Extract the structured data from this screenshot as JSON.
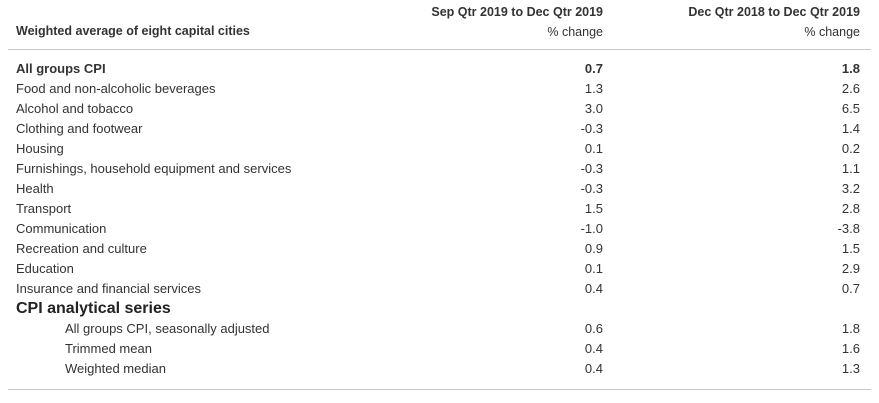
{
  "header": {
    "label": "Weighted average of eight capital cities",
    "col1_title": "Sep Qtr 2019 to Dec Qtr 2019",
    "col1_unit": "% change",
    "col2_title": "Dec Qtr 2018 to Dec Qtr 2019",
    "col2_unit": "% change"
  },
  "rows": [
    {
      "label": "All groups CPI",
      "v1": "0.7",
      "v2": "1.8"
    },
    {
      "label": "Food and non-alcoholic beverages",
      "v1": "1.3",
      "v2": "2.6"
    },
    {
      "label": "Alcohol and tobacco",
      "v1": "3.0",
      "v2": "6.5"
    },
    {
      "label": "Clothing and footwear",
      "v1": "-0.3",
      "v2": "1.4"
    },
    {
      "label": "Housing",
      "v1": "0.1",
      "v2": "0.2"
    },
    {
      "label": "Furnishings, household equipment and services",
      "v1": "-0.3",
      "v2": "1.1"
    },
    {
      "label": "Health",
      "v1": "-0.3",
      "v2": "3.2"
    },
    {
      "label": "Transport",
      "v1": "1.5",
      "v2": "2.8"
    },
    {
      "label": "Communication",
      "v1": "-1.0",
      "v2": "-3.8"
    },
    {
      "label": "Recreation and culture",
      "v1": "0.9",
      "v2": "1.5"
    },
    {
      "label": "Education",
      "v1": "0.1",
      "v2": "2.9"
    },
    {
      "label": "Insurance and financial services",
      "v1": "0.4",
      "v2": "0.7"
    }
  ],
  "analytical": {
    "title": "CPI analytical series",
    "rows": [
      {
        "label": "All groups CPI, seasonally adjusted",
        "v1": "0.6",
        "v2": "1.8"
      },
      {
        "label": "Trimmed mean",
        "v1": "0.4",
        "v2": "1.6"
      },
      {
        "label": "Weighted median",
        "v1": "0.4",
        "v2": "1.3"
      }
    ]
  }
}
